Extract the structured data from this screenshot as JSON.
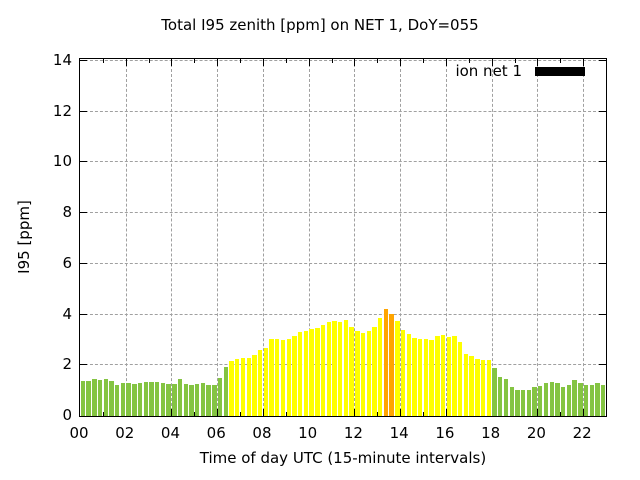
{
  "title": "Total I95 zenith [ppm] on NET 1, DoY=055",
  "chart_data": {
    "type": "bar",
    "title": "Total I95 zenith [ppm] on NET 1, DoY=055",
    "xlabel": "Time of day UTC (15-minute intervals)",
    "ylabel": "I95 [ppm]",
    "ylim": [
      0,
      14
    ],
    "xlim_hours": [
      0,
      23
    ],
    "grid": true,
    "y_ticks": [
      0,
      2,
      4,
      6,
      8,
      10,
      12,
      14
    ],
    "x_tick_labels": [
      "00",
      "02",
      "04",
      "06",
      "08",
      "10",
      "12",
      "14",
      "16",
      "18",
      "20",
      "22"
    ],
    "interval_minutes": 15,
    "legend": {
      "label": "ion net 1",
      "swatch_color": "#000000",
      "position": "top-right-inside"
    },
    "palette": {
      "g": "#84c442",
      "y": "#ffff00",
      "o": "#ffa500"
    },
    "times": [
      "00:00",
      "00:15",
      "00:30",
      "00:45",
      "01:00",
      "01:15",
      "01:30",
      "01:45",
      "02:00",
      "02:15",
      "02:30",
      "02:45",
      "03:00",
      "03:15",
      "03:30",
      "03:45",
      "04:00",
      "04:15",
      "04:30",
      "04:45",
      "05:00",
      "05:15",
      "05:30",
      "05:45",
      "06:00",
      "06:15",
      "06:30",
      "06:45",
      "07:00",
      "07:15",
      "07:30",
      "07:45",
      "08:00",
      "08:15",
      "08:30",
      "08:45",
      "09:00",
      "09:15",
      "09:30",
      "09:45",
      "10:00",
      "10:15",
      "10:30",
      "10:45",
      "11:00",
      "11:15",
      "11:30",
      "11:45",
      "12:00",
      "12:15",
      "12:30",
      "12:45",
      "13:00",
      "13:15",
      "13:30",
      "13:45",
      "14:00",
      "14:15",
      "14:30",
      "14:45",
      "15:00",
      "15:15",
      "15:30",
      "15:45",
      "16:00",
      "16:15",
      "16:30",
      "16:45",
      "17:00",
      "17:15",
      "17:30",
      "17:45",
      "18:00",
      "18:15",
      "18:30",
      "18:45",
      "19:00",
      "19:15",
      "19:30",
      "19:45",
      "20:00",
      "20:15",
      "20:30",
      "20:45",
      "21:00",
      "21:15",
      "21:30",
      "21:45",
      "22:00",
      "22:15",
      "22:30",
      "22:45"
    ],
    "values": [
      1.38,
      1.4,
      1.45,
      1.43,
      1.45,
      1.38,
      1.22,
      1.31,
      1.3,
      1.26,
      1.3,
      1.33,
      1.36,
      1.33,
      1.31,
      1.28,
      1.28,
      1.45,
      1.26,
      1.22,
      1.27,
      1.31,
      1.23,
      1.23,
      1.51,
      1.93,
      2.16,
      2.26,
      2.29,
      2.29,
      2.4,
      2.6,
      2.69,
      3.03,
      3.03,
      2.99,
      3.03,
      3.17,
      3.32,
      3.36,
      3.43,
      3.48,
      3.6,
      3.72,
      3.75,
      3.72,
      3.78,
      3.52,
      3.36,
      3.28,
      3.36,
      3.52,
      3.85,
      4.21,
      4.03,
      3.75,
      3.4,
      3.22,
      3.09,
      3.03,
      3.03,
      2.99,
      3.17,
      3.19,
      3.12,
      3.15,
      2.93,
      2.44,
      2.36,
      2.26,
      2.2,
      2.22,
      1.89,
      1.55,
      1.46,
      1.14,
      1.04,
      1.04,
      1.04,
      1.14,
      1.2,
      1.29,
      1.33,
      1.29,
      1.14,
      1.24,
      1.43,
      1.29,
      1.24,
      1.24,
      1.29,
      1.24
    ],
    "colors": "ggggggggggggggggggggggggggyyyyyyyyyyyyyyyyyyyyyyyyyyyooyyyyyyyyyyyyyyyyygggggggggggggggggggg"
  }
}
